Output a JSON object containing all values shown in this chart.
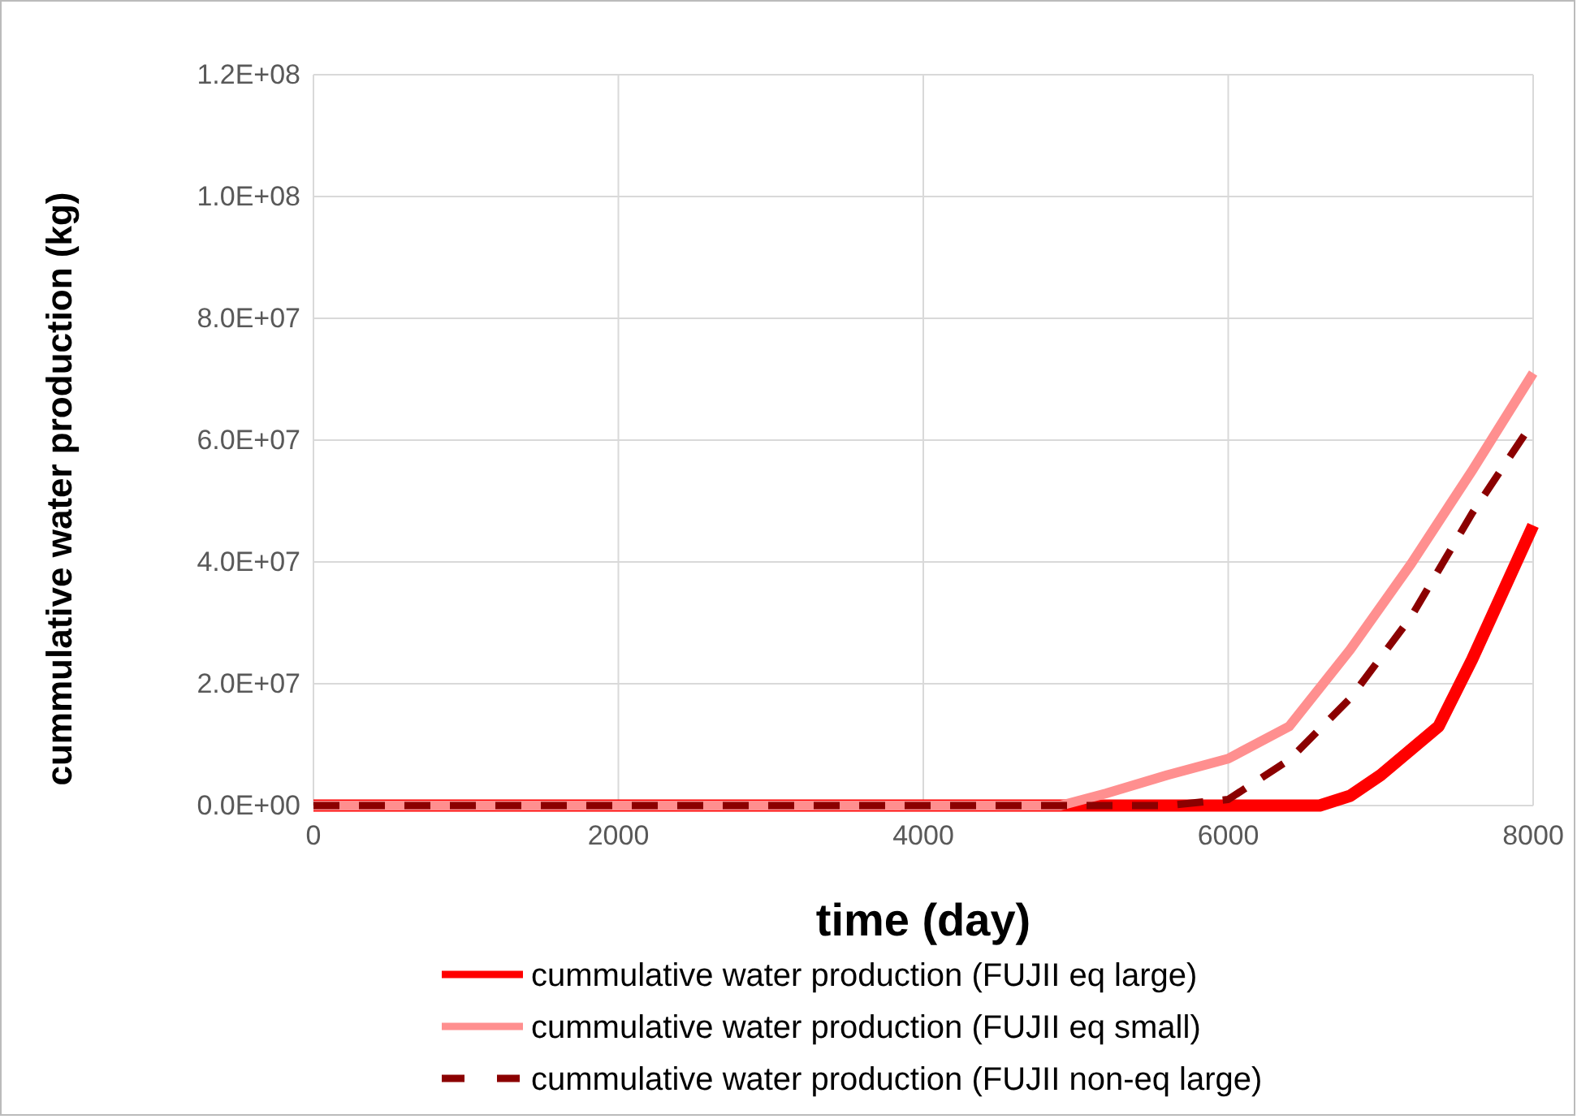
{
  "chart_data": {
    "type": "line",
    "xlabel": "time (day)",
    "ylabel": "cummulative water production (kg)",
    "xlim": [
      0,
      8000
    ],
    "xticks": [
      0,
      2000,
      4000,
      6000,
      8000
    ],
    "ylim": [
      0,
      120000000
    ],
    "yticks": [
      {
        "value": 0,
        "label": "0.0E+00"
      },
      {
        "value": 20000000,
        "label": "2.0E+07"
      },
      {
        "value": 40000000,
        "label": "4.0E+07"
      },
      {
        "value": 60000000,
        "label": "6.0E+07"
      },
      {
        "value": 80000000,
        "label": "8.0E+07"
      },
      {
        "value": 100000000,
        "label": "1.0E+08"
      },
      {
        "value": 120000000,
        "label": "1.2E+08"
      }
    ],
    "grid": true,
    "legend": "bottom",
    "marker": "none",
    "series": [
      {
        "name": "cummulative water production (FUJII eq large)",
        "color": "#ff0000",
        "line_style": "solid",
        "x": [
          0,
          6600,
          6800,
          7000,
          7380,
          7600,
          8000
        ],
        "values": [
          0,
          0,
          1600000,
          5000000,
          13000000,
          24000000,
          46000000
        ]
      },
      {
        "name": "cummulative water production (FUJII eq small)",
        "color": "#ff8f8f",
        "line_style": "solid",
        "x": [
          0,
          4900,
          5200,
          5600,
          6000,
          6400,
          6800,
          7200,
          7600,
          8000
        ],
        "values": [
          0,
          0,
          2000000,
          5000000,
          7700000,
          13000000,
          25600000,
          39700000,
          55000000,
          71000000
        ]
      },
      {
        "name": "cummulative water production (FUJII non-eq large)",
        "color": "#8b0000",
        "line_style": "dashed",
        "x": [
          0,
          5600,
          6000,
          6400,
          6800,
          7200,
          7600,
          8000
        ],
        "values": [
          0,
          0,
          1000000,
          7500000,
          17600000,
          31000000,
          48000000,
          63000000
        ]
      }
    ]
  }
}
